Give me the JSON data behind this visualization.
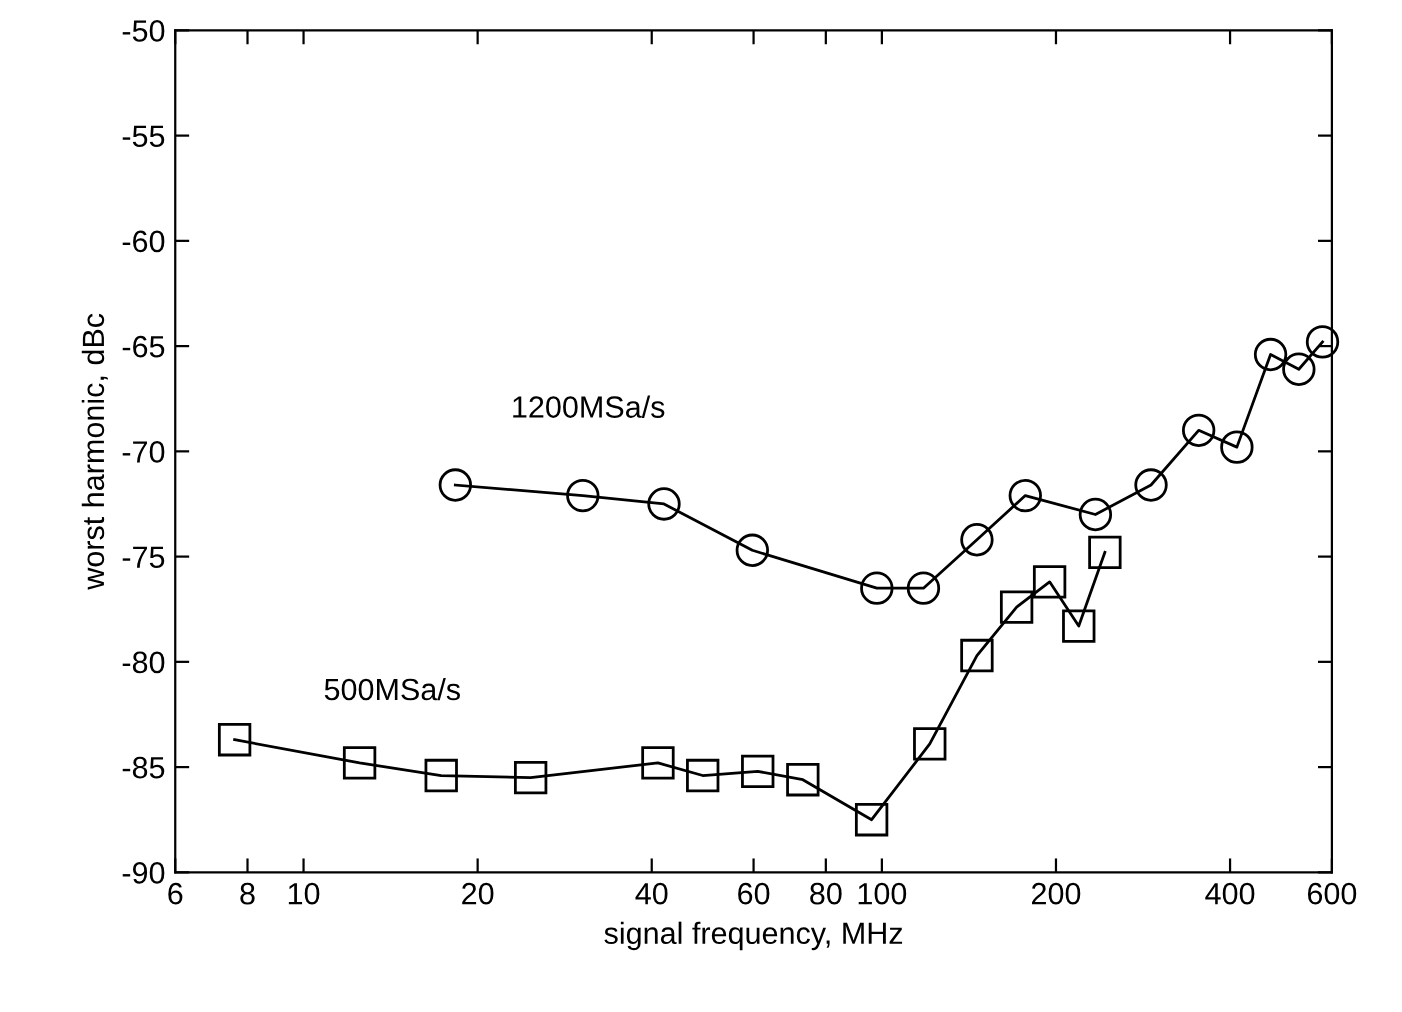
{
  "chart_data": {
    "type": "line",
    "xlabel": "signal frequency, MHz",
    "ylabel": "worst harmonic, dBc",
    "log": "x",
    "xlim": [
      6,
      600
    ],
    "xticks": [
      6,
      8,
      10,
      20,
      40,
      60,
      80,
      100,
      200,
      400,
      600
    ],
    "ylim": [
      -90,
      -50
    ],
    "yticks": [
      -90,
      -85,
      -80,
      -75,
      -70,
      -65,
      -60,
      -55,
      -50
    ],
    "grid": false,
    "legend": false,
    "line_style": "solid",
    "series": [
      {
        "name": "1200MSa/s",
        "color": "#000000",
        "marker": "circle",
        "x": [
          18.3,
          30.4,
          42,
          59.7,
          98,
          118,
          146,
          177,
          234,
          292,
          353,
          411,
          470,
          526,
          578
        ],
        "values": [
          -71.6,
          -72.1,
          -72.5,
          -74.7,
          -76.5,
          -76.5,
          -74.2,
          -72.1,
          -73.0,
          -71.6,
          -69.0,
          -69.8,
          -65.4,
          -66.1,
          -64.8
        ]
      },
      {
        "name": "500MSa/s",
        "color": "#000000",
        "marker": "square",
        "x": [
          7.6,
          12.5,
          17.3,
          24.7,
          41,
          49,
          61,
          73,
          96,
          121,
          146,
          171,
          195,
          219,
          243
        ],
        "values": [
          -83.7,
          -84.8,
          -85.4,
          -85.5,
          -84.8,
          -85.4,
          -85.2,
          -85.6,
          -87.5,
          -83.9,
          -79.7,
          -77.4,
          -76.2,
          -78.3,
          -74.8
        ]
      }
    ]
  }
}
